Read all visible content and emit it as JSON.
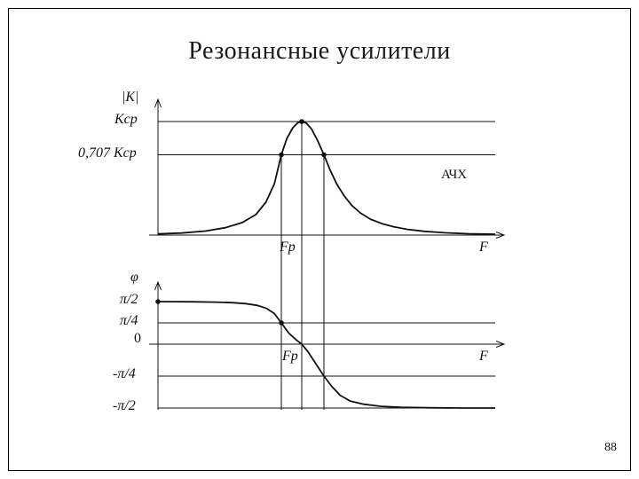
{
  "title": "Резонансные усилители",
  "page_number": "88",
  "chart_data": [
    {
      "type": "line",
      "name": "amplitude-frequency-response",
      "title": "АЧХ",
      "xlabel": "F",
      "ylabel": "|K|",
      "x_marker_label": "Fр",
      "ylim": [
        0,
        1
      ],
      "y_units": "K / Kср",
      "y_ticks": [
        {
          "label": "Kср",
          "value": 1.0
        },
        {
          "label": "0,707 Kср",
          "value": 0.707
        }
      ],
      "points": [
        [
          0.0,
          0.01
        ],
        [
          0.07,
          0.018
        ],
        [
          0.14,
          0.035
        ],
        [
          0.2,
          0.065
        ],
        [
          0.25,
          0.11
        ],
        [
          0.29,
          0.18
        ],
        [
          0.32,
          0.29
        ],
        [
          0.345,
          0.45
        ],
        [
          0.3658,
          0.707
        ],
        [
          0.382,
          0.85
        ],
        [
          0.4,
          0.945
        ],
        [
          0.415,
          0.99
        ],
        [
          0.4263,
          1.0
        ],
        [
          0.44,
          0.985
        ],
        [
          0.455,
          0.935
        ],
        [
          0.472,
          0.84
        ],
        [
          0.4921,
          0.707
        ],
        [
          0.51,
          0.575
        ],
        [
          0.53,
          0.45
        ],
        [
          0.552,
          0.345
        ],
        [
          0.575,
          0.26
        ],
        [
          0.6,
          0.195
        ],
        [
          0.63,
          0.14
        ],
        [
          0.665,
          0.1
        ],
        [
          0.7,
          0.072
        ],
        [
          0.74,
          0.05
        ],
        [
          0.79,
          0.033
        ],
        [
          0.85,
          0.02
        ],
        [
          0.92,
          0.012
        ],
        [
          1.0,
          0.008
        ]
      ],
      "markers": [
        [
          0.4263,
          1.0
        ],
        [
          0.3658,
          0.707
        ],
        [
          0.4921,
          0.707
        ]
      ]
    },
    {
      "type": "line",
      "name": "phase-frequency-response",
      "title": "",
      "xlabel": "F",
      "ylabel": "φ",
      "x_marker_label": "Fр",
      "ylim": [
        -0.5,
        0.5
      ],
      "y_units": "φ / π",
      "y_ticks": [
        {
          "label": "π/2",
          "value": 0.5
        },
        {
          "label": "π/4",
          "value": 0.25
        },
        {
          "label": "0",
          "value": 0
        },
        {
          "label": "-π/4",
          "value": -0.25
        },
        {
          "label": "-π/2",
          "value": -0.5
        }
      ],
      "points": [
        [
          0.0,
          0.5
        ],
        [
          0.1,
          0.498
        ],
        [
          0.17,
          0.494
        ],
        [
          0.22,
          0.488
        ],
        [
          0.26,
          0.476
        ],
        [
          0.295,
          0.455
        ],
        [
          0.322,
          0.42
        ],
        [
          0.345,
          0.36
        ],
        [
          0.3658,
          0.25
        ],
        [
          0.388,
          0.13
        ],
        [
          0.41,
          0.05
        ],
        [
          0.4263,
          0.0
        ],
        [
          0.445,
          -0.06
        ],
        [
          0.465,
          -0.14
        ],
        [
          0.4921,
          -0.25
        ],
        [
          0.515,
          -0.33
        ],
        [
          0.54,
          -0.4
        ],
        [
          0.57,
          -0.445
        ],
        [
          0.61,
          -0.47
        ],
        [
          0.66,
          -0.486
        ],
        [
          0.72,
          -0.494
        ],
        [
          0.8,
          -0.498
        ],
        [
          0.9,
          -0.5
        ],
        [
          1.0,
          -0.5
        ]
      ],
      "markers": [
        [
          0.0,
          0.5
        ],
        [
          0.3658,
          0.25
        ]
      ]
    }
  ]
}
